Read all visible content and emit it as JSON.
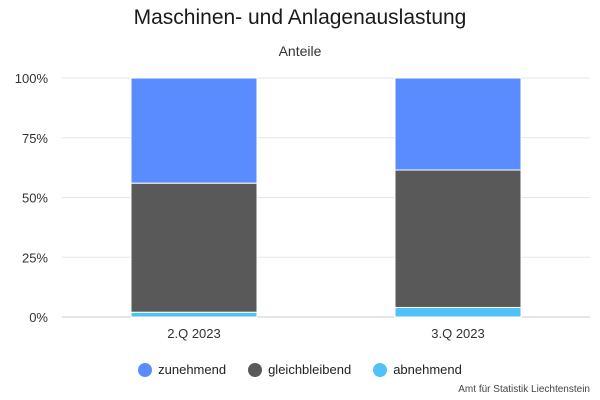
{
  "chart_data": {
    "type": "bar",
    "stacked": true,
    "title": "Maschinen- und Anlagenauslastung",
    "subtitle": "Anteile",
    "categories": [
      "2.Q 2023",
      "3.Q 2023"
    ],
    "series": [
      {
        "name": "abnehmend",
        "color": "#4fc3f7",
        "values": [
          2,
          4
        ]
      },
      {
        "name": "gleichbleibend",
        "color": "#595959",
        "values": [
          54,
          57.5
        ]
      },
      {
        "name": "zunehmend",
        "color": "#5b8cff",
        "values": [
          44,
          38.5
        ]
      }
    ],
    "ylim": [
      0,
      100
    ],
    "yticks": [
      "0%",
      "25%",
      "50%",
      "75%",
      "100%"
    ],
    "ytick_values": [
      0,
      25,
      50,
      75,
      100
    ],
    "grid": true,
    "legend_placement": "bottom-center",
    "legend_order": [
      "zunehmend",
      "gleichbleibend",
      "abnehmend"
    ]
  },
  "source": "Amt für Statistik Liechtenstein"
}
